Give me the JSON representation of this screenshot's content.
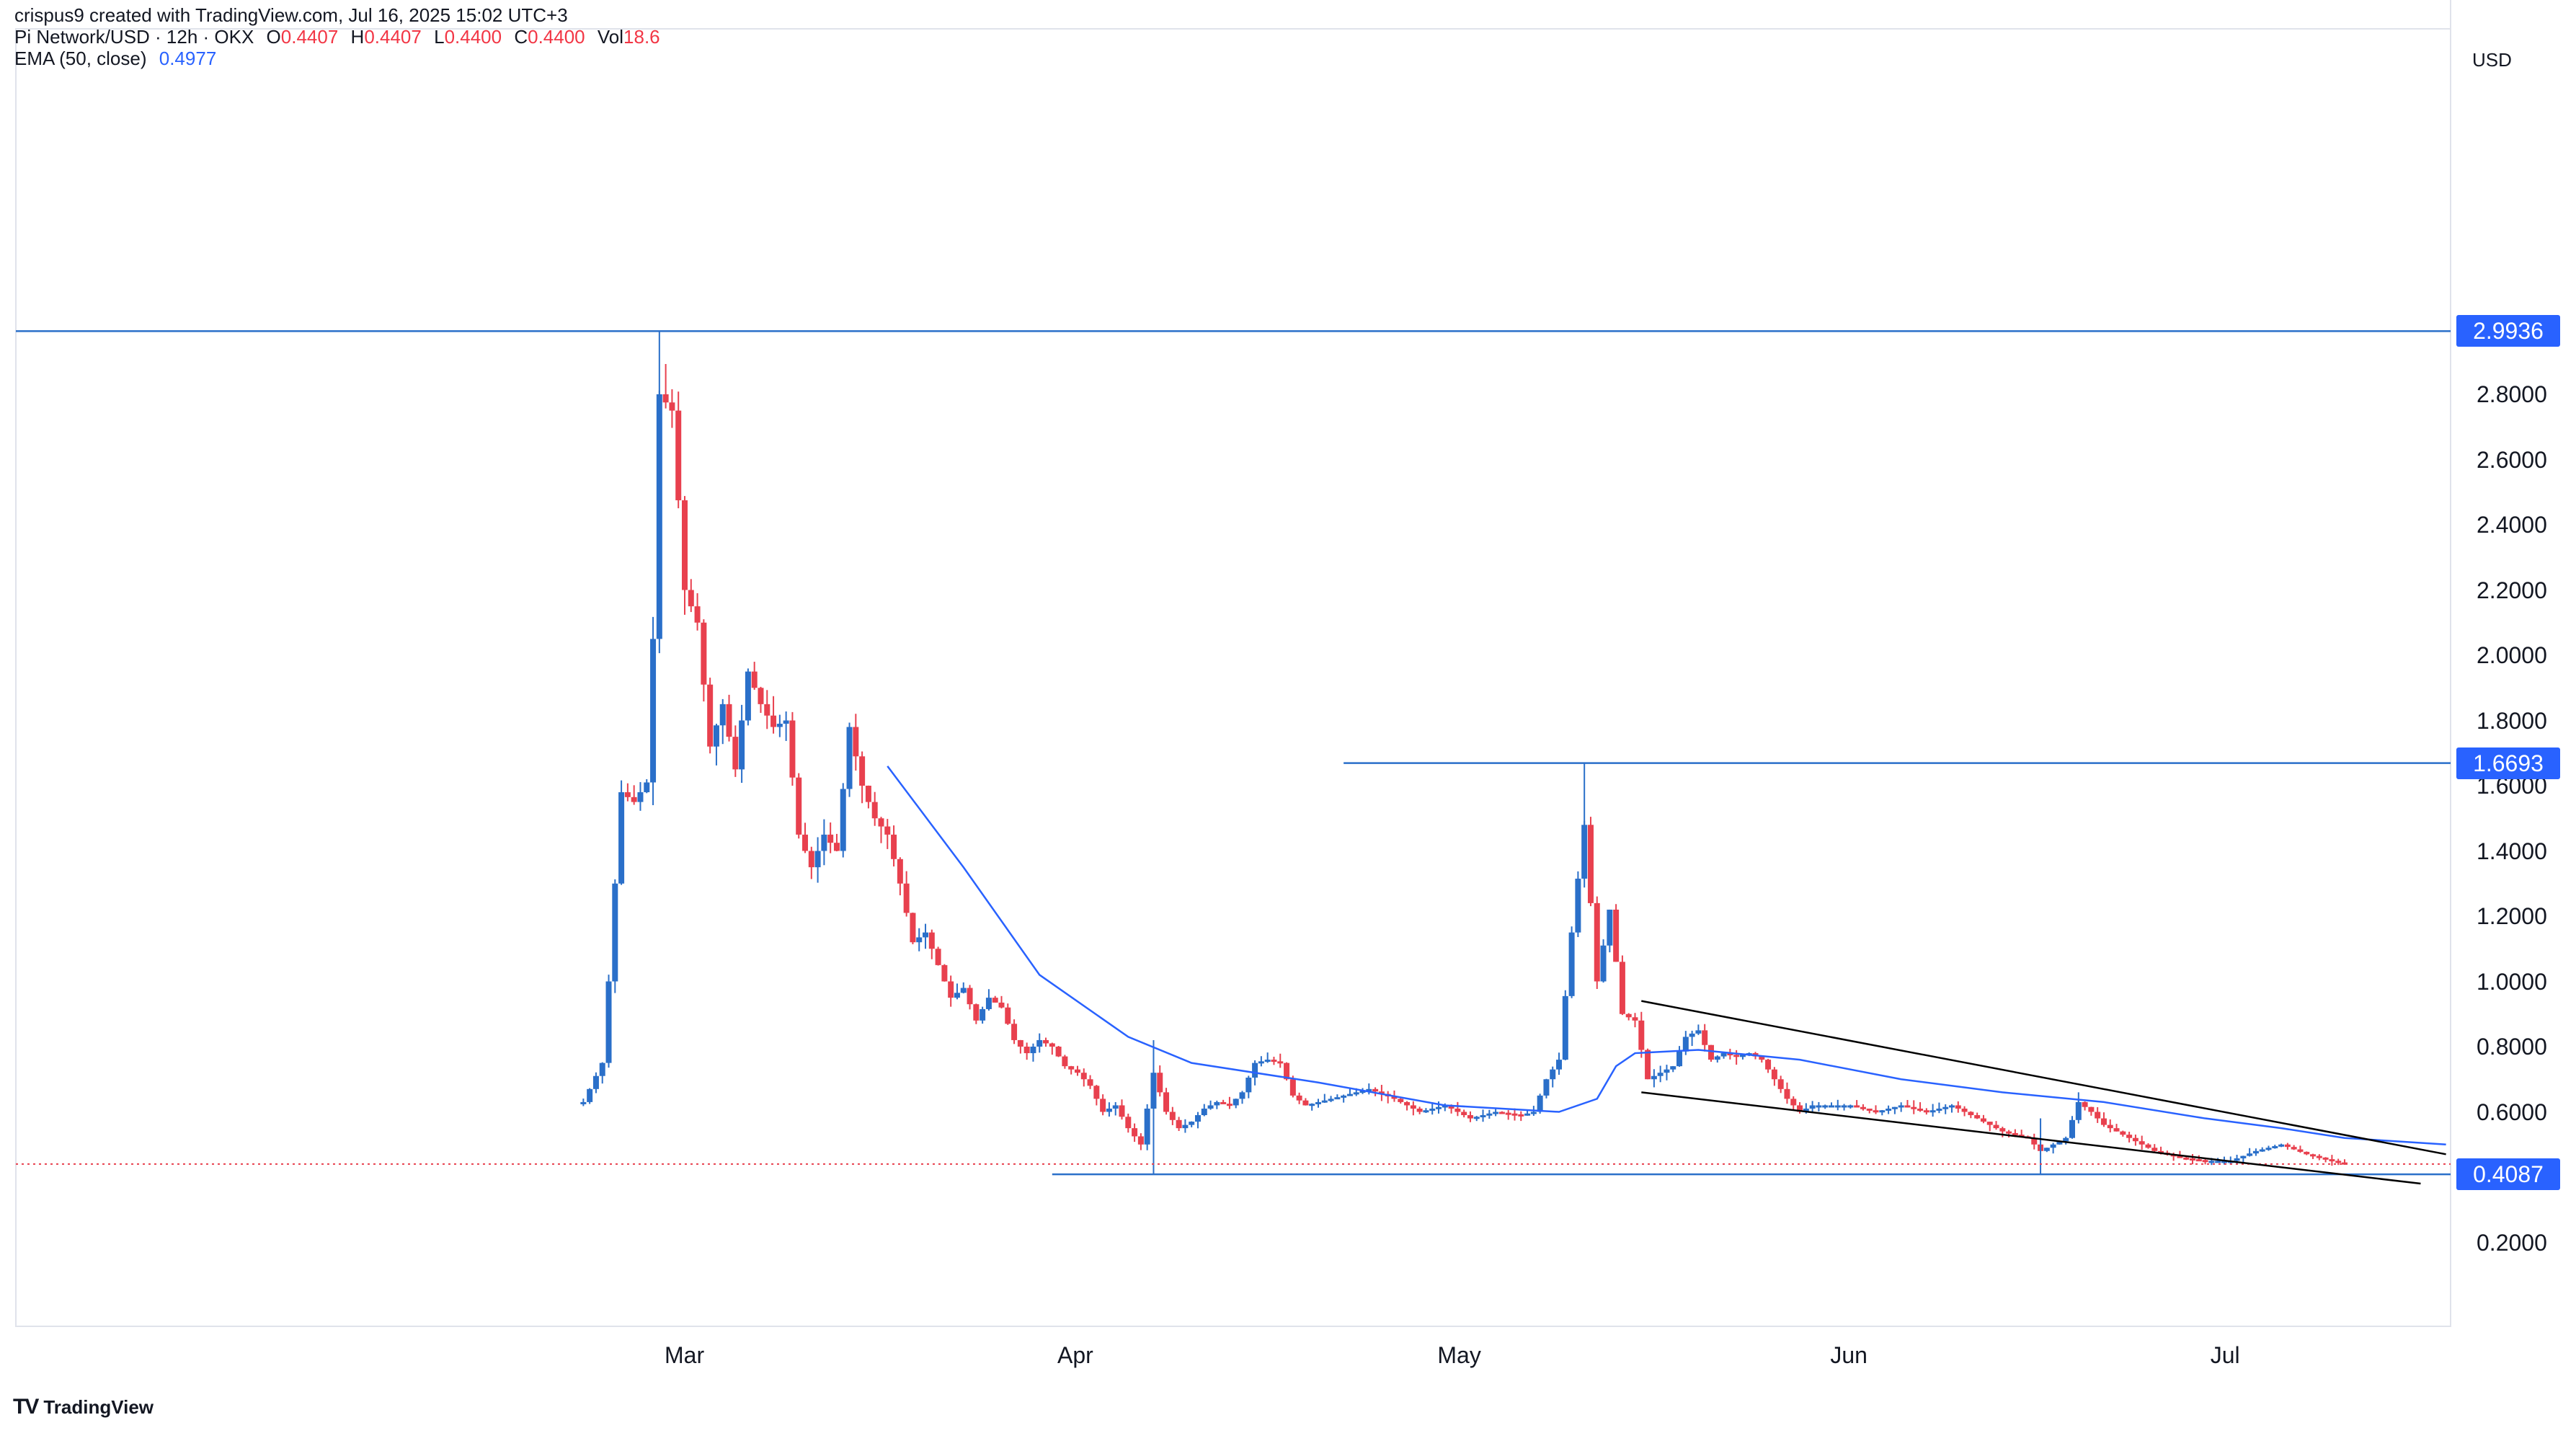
{
  "header": {
    "attribution": "crispus9 created with TradingView.com, Jul 16, 2025 15:02 UTC+3",
    "symbol": "Pi Network/USD · 12h · OKX",
    "o_label": "O",
    "o_value": "0.4407",
    "h_label": "H",
    "h_value": "0.4407",
    "l_label": "L",
    "l_value": "0.4400",
    "c_label": "C",
    "c_value": "0.4400",
    "vol_label": "Vol",
    "vol_value": "18.6",
    "ema_label": "EMA (50, close)",
    "ema_value": "0.4977"
  },
  "currency": "USD",
  "brand": "TradingView",
  "colors": {
    "up": "#2a6fc9",
    "down": "#e8404e",
    "ema": "#2962ff",
    "level": "#2a6fc9",
    "badge": "#2962ff",
    "trend": "#000000"
  },
  "badges": [
    {
      "name": "badge-high",
      "text": "2.9936",
      "value": 2.9936
    },
    {
      "name": "badge-mid",
      "text": "1.6693",
      "value": 1.6693
    },
    {
      "name": "badge-low",
      "text": "0.4087",
      "value": 0.4087
    }
  ],
  "chart_data": {
    "type": "candlestick",
    "x_ticks": [
      "Mar",
      "Apr",
      "May",
      "Jun",
      "Jul"
    ],
    "x_tick_days": [
      0,
      31,
      61,
      92,
      122
    ],
    "y_ticks": [
      "0.2000",
      "0.6000",
      "0.8000",
      "1.0000",
      "1.2000",
      "1.4000",
      "1.6000",
      "1.8000",
      "2.0000",
      "2.2000",
      "2.4000",
      "2.6000",
      "2.8000"
    ],
    "y_range": [
      0.0,
      3.2
    ],
    "last_close": 0.44,
    "horizontal_levels": [
      {
        "value": 2.9936,
        "from_day": -53
      },
      {
        "value": 1.6693,
        "from_day": 52
      },
      {
        "value": 0.4087,
        "from_day": 29
      }
    ],
    "trendlines": [
      {
        "from": [
          75.5,
          0.94
        ],
        "to": [
          139,
          0.47
        ]
      },
      {
        "from": [
          75.5,
          0.66
        ],
        "to": [
          137,
          0.38
        ]
      }
    ],
    "ema_path": [
      [
        16,
        1.66
      ],
      [
        22,
        1.35
      ],
      [
        28,
        1.02
      ],
      [
        35,
        0.83
      ],
      [
        40,
        0.75
      ],
      [
        50,
        0.69
      ],
      [
        60,
        0.62
      ],
      [
        69,
        0.6
      ],
      [
        72,
        0.64
      ],
      [
        73.5,
        0.74
      ],
      [
        75,
        0.78
      ],
      [
        80,
        0.79
      ],
      [
        88,
        0.76
      ],
      [
        96,
        0.7
      ],
      [
        104,
        0.66
      ],
      [
        112,
        0.63
      ],
      [
        120,
        0.58
      ],
      [
        126,
        0.55
      ],
      [
        131,
        0.52
      ],
      [
        139,
        0.5
      ]
    ],
    "close_path": [
      [
        -8,
        0.63
      ],
      [
        -6.5,
        0.75
      ],
      [
        -6,
        1.0
      ],
      [
        -5.5,
        1.3
      ],
      [
        -5,
        1.58
      ],
      [
        -4,
        1.55
      ],
      [
        -3,
        1.61
      ],
      [
        -2.5,
        2.05
      ],
      [
        -2,
        2.8
      ],
      [
        -1,
        2.75
      ],
      [
        0,
        2.2
      ],
      [
        1,
        2.1
      ],
      [
        2,
        1.72
      ],
      [
        3,
        1.85
      ],
      [
        4,
        1.65
      ],
      [
        5,
        1.95
      ],
      [
        6,
        1.85
      ],
      [
        7,
        1.78
      ],
      [
        8,
        1.8
      ],
      [
        9,
        1.45
      ],
      [
        10,
        1.35
      ],
      [
        11,
        1.45
      ],
      [
        12,
        1.4
      ],
      [
        13,
        1.78
      ],
      [
        14,
        1.6
      ],
      [
        15,
        1.5
      ],
      [
        16,
        1.45
      ],
      [
        17,
        1.3
      ],
      [
        18,
        1.12
      ],
      [
        19,
        1.15
      ],
      [
        20,
        1.05
      ],
      [
        21,
        0.95
      ],
      [
        22,
        0.98
      ],
      [
        23,
        0.88
      ],
      [
        24,
        0.95
      ],
      [
        25,
        0.92
      ],
      [
        26,
        0.82
      ],
      [
        27,
        0.78
      ],
      [
        28,
        0.82
      ],
      [
        29,
        0.8
      ],
      [
        30,
        0.74
      ],
      [
        31,
        0.72
      ],
      [
        32,
        0.68
      ],
      [
        33,
        0.6
      ],
      [
        34,
        0.62
      ],
      [
        35,
        0.55
      ],
      [
        36,
        0.5
      ],
      [
        37,
        0.72
      ],
      [
        38,
        0.6
      ],
      [
        39,
        0.55
      ],
      [
        40,
        0.57
      ],
      [
        41,
        0.61
      ],
      [
        42,
        0.63
      ],
      [
        43,
        0.62
      ],
      [
        44,
        0.66
      ],
      [
        45,
        0.75
      ],
      [
        46,
        0.76
      ],
      [
        47,
        0.75
      ],
      [
        48,
        0.65
      ],
      [
        49,
        0.62
      ],
      [
        50,
        0.63
      ],
      [
        52,
        0.65
      ],
      [
        54,
        0.67
      ],
      [
        56,
        0.64
      ],
      [
        58,
        0.6
      ],
      [
        60,
        0.62
      ],
      [
        62,
        0.58
      ],
      [
        64,
        0.6
      ],
      [
        66,
        0.59
      ],
      [
        67,
        0.6
      ],
      [
        68,
        0.7
      ],
      [
        69,
        0.76
      ],
      [
        70,
        1.15
      ],
      [
        71,
        1.48
      ],
      [
        72,
        1.0
      ],
      [
        73,
        1.22
      ],
      [
        74,
        0.9
      ],
      [
        75,
        0.88
      ],
      [
        76,
        0.7
      ],
      [
        77,
        0.72
      ],
      [
        78,
        0.74
      ],
      [
        79,
        0.83
      ],
      [
        80,
        0.85
      ],
      [
        81,
        0.76
      ],
      [
        82,
        0.78
      ],
      [
        83,
        0.77
      ],
      [
        84,
        0.78
      ],
      [
        85,
        0.76
      ],
      [
        86,
        0.7
      ],
      [
        87,
        0.64
      ],
      [
        88,
        0.6
      ],
      [
        89,
        0.62
      ],
      [
        90,
        0.62
      ],
      [
        92,
        0.62
      ],
      [
        94,
        0.6
      ],
      [
        96,
        0.62
      ],
      [
        98,
        0.6
      ],
      [
        100,
        0.62
      ],
      [
        102,
        0.58
      ],
      [
        104,
        0.54
      ],
      [
        106,
        0.52
      ],
      [
        107,
        0.48
      ],
      [
        109,
        0.52
      ],
      [
        110,
        0.63
      ],
      [
        111,
        0.6
      ],
      [
        112,
        0.56
      ],
      [
        114,
        0.52
      ],
      [
        116,
        0.48
      ],
      [
        118,
        0.46
      ],
      [
        120,
        0.45
      ],
      [
        122,
        0.45
      ],
      [
        124,
        0.48
      ],
      [
        126,
        0.5
      ],
      [
        128,
        0.47
      ],
      [
        130,
        0.45
      ],
      [
        131,
        0.44
      ]
    ],
    "spikes": [
      {
        "day": -2,
        "high": 2.9936
      },
      {
        "day": 37,
        "high": 0.82,
        "low": 0.4087
      },
      {
        "day": 71,
        "high": 1.6693
      },
      {
        "day": 107,
        "high": 0.58,
        "low": 0.4087
      },
      {
        "day": 110,
        "high": 0.66
      }
    ]
  }
}
